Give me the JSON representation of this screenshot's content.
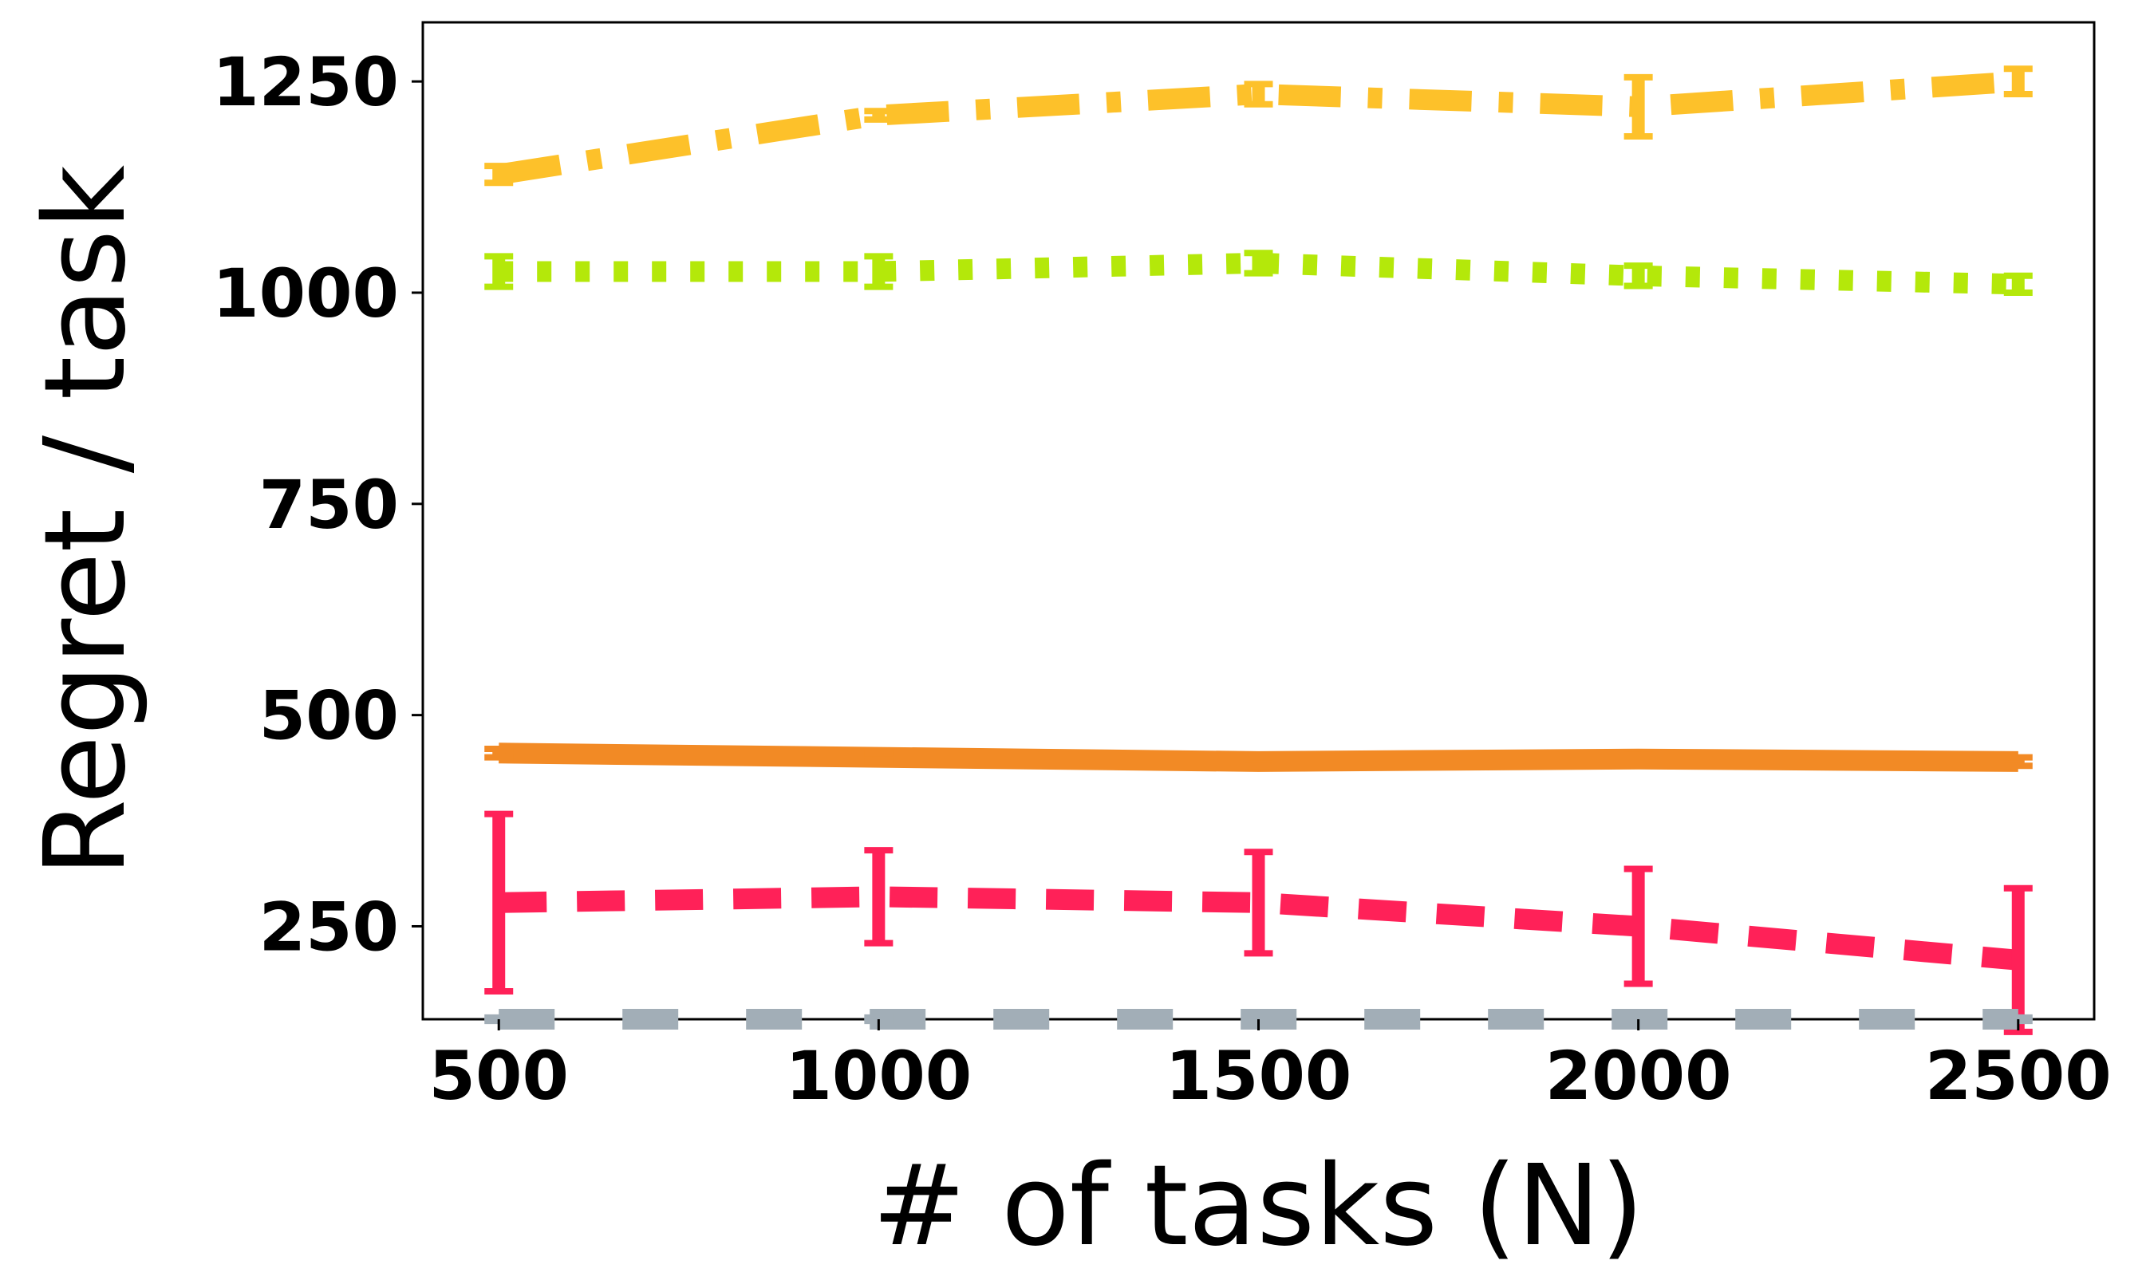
{
  "chart_data": {
    "type": "line",
    "xlabel": "# of tasks (N)",
    "ylabel": "Regret / task",
    "x": [
      500,
      1000,
      1500,
      2000,
      2500
    ],
    "xlim": [
      400,
      2600
    ],
    "ylim": [
      140,
      1320
    ],
    "xticks": [
      500,
      1000,
      1500,
      2000,
      2500
    ],
    "yticks": [
      250,
      500,
      750,
      1000,
      1250
    ],
    "grid": false,
    "series": [
      {
        "values": [
          1140,
          1210,
          1235,
          1220,
          1250
        ],
        "err": [
          10,
          5,
          12,
          35,
          15
        ],
        "color": "#FDC12A",
        "dash": "dashdot"
      },
      {
        "values": [
          1025,
          1025,
          1035,
          1020,
          1010
        ],
        "err": [
          18,
          18,
          12,
          12,
          10
        ],
        "color": "#B4E80A",
        "dash": "dotted"
      },
      {
        "values": [
          455,
          450,
          445,
          448,
          445
        ],
        "err": [
          5,
          5,
          5,
          5,
          5
        ],
        "color": "#F28A25",
        "dash": "solid"
      },
      {
        "values": [
          278,
          285,
          278,
          250,
          210
        ],
        "err": [
          105,
          55,
          60,
          68,
          85
        ],
        "color": "#FF2158",
        "dash": "dashed"
      },
      {
        "values": [
          140,
          140,
          140,
          140,
          140
        ],
        "err": [
          2,
          2,
          2,
          2,
          2
        ],
        "color": "#A2AEB7",
        "dash": "longdash"
      }
    ]
  }
}
